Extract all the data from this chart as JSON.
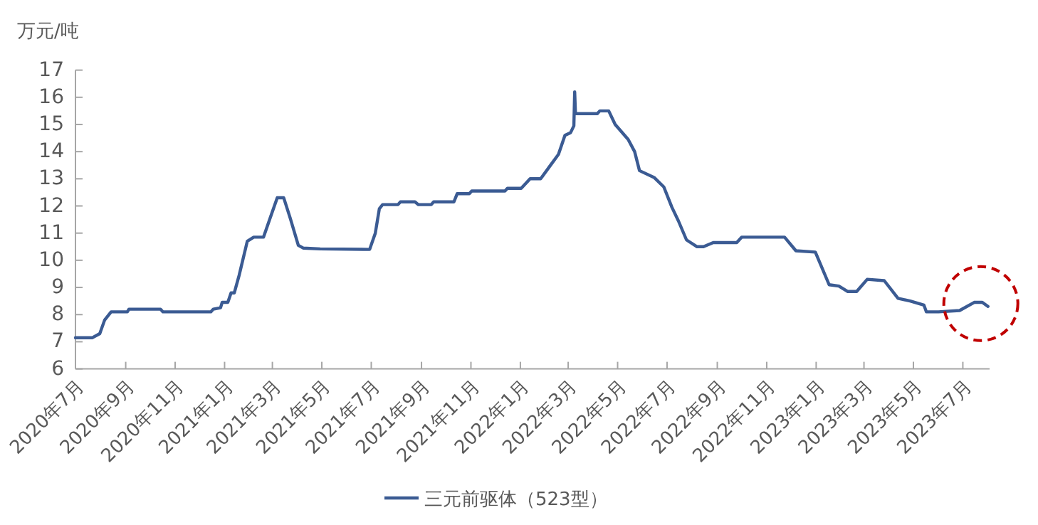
{
  "chart_data": {
    "type": "line",
    "ylabel": "万元/吨",
    "legend": "bottom",
    "grid": false,
    "marker": "none",
    "line_style": "solid",
    "ylim": [
      6,
      17
    ],
    "yticks": [
      6,
      7,
      8,
      9,
      10,
      11,
      12,
      13,
      14,
      15,
      16,
      17
    ],
    "xlim": [
      "2020-07-01",
      "2023-08-03"
    ],
    "xticks": [
      {
        "value": "2020-07-01",
        "label": "2020年7月"
      },
      {
        "value": "2020-09-01",
        "label": "2020年9月"
      },
      {
        "value": "2020-11-01",
        "label": "2020年11月"
      },
      {
        "value": "2021-01-01",
        "label": "2021年1月"
      },
      {
        "value": "2021-03-01",
        "label": "2021年3月"
      },
      {
        "value": "2021-05-01",
        "label": "2021年5月"
      },
      {
        "value": "2021-07-01",
        "label": "2021年7月"
      },
      {
        "value": "2021-09-01",
        "label": "2021年9月"
      },
      {
        "value": "2021-11-01",
        "label": "2021年11月"
      },
      {
        "value": "2022-01-01",
        "label": "2022年1月"
      },
      {
        "value": "2022-03-01",
        "label": "2022年3月"
      },
      {
        "value": "2022-05-01",
        "label": "2022年5月"
      },
      {
        "value": "2022-07-01",
        "label": "2022年7月"
      },
      {
        "value": "2022-09-01",
        "label": "2022年9月"
      },
      {
        "value": "2022-11-01",
        "label": "2022年11月"
      },
      {
        "value": "2023-01-01",
        "label": "2023年1月"
      },
      {
        "value": "2023-03-01",
        "label": "2023年3月"
      },
      {
        "value": "2023-05-01",
        "label": "2023年5月"
      },
      {
        "value": "2023-07-01",
        "label": "2023年7月"
      }
    ],
    "x": [
      "2020-07-01",
      "2020-07-22",
      "2020-07-31",
      "2020-08-06",
      "2020-08-14",
      "2020-09-03",
      "2020-09-05",
      "2020-10-14",
      "2020-10-17",
      "2020-12-15",
      "2020-12-18",
      "2020-12-27",
      "2020-12-29",
      "2021-01-05",
      "2021-01-09",
      "2021-01-13",
      "2021-01-19",
      "2021-01-29",
      "2021-02-06",
      "2021-02-18",
      "2021-02-25",
      "2021-03-07",
      "2021-03-15",
      "2021-03-23",
      "2021-04-02",
      "2021-04-08",
      "2021-04-29",
      "2021-06-29",
      "2021-07-06",
      "2021-07-11",
      "2021-07-15",
      "2021-08-03",
      "2021-08-06",
      "2021-08-24",
      "2021-08-28",
      "2021-09-13",
      "2021-09-16",
      "2021-10-11",
      "2021-10-15",
      "2021-10-30",
      "2021-11-02",
      "2021-12-13",
      "2021-12-16",
      "2022-01-02",
      "2022-01-13",
      "2022-01-26",
      "2022-02-06",
      "2022-02-17",
      "2022-02-25",
      "2022-03-04",
      "2022-03-08",
      "2022-03-09",
      "2022-03-10",
      "2022-04-06",
      "2022-04-09",
      "2022-04-20",
      "2022-04-28",
      "2022-05-14",
      "2022-05-22",
      "2022-05-28",
      "2022-06-15",
      "2022-06-27",
      "2022-07-07",
      "2022-07-15",
      "2022-07-25",
      "2022-08-07",
      "2022-08-15",
      "2022-08-27",
      "2022-09-25",
      "2022-10-01",
      "2022-11-23",
      "2022-12-07",
      "2022-12-31",
      "2023-01-17",
      "2023-01-29",
      "2023-02-09",
      "2023-02-20",
      "2023-03-05",
      "2023-03-26",
      "2023-04-12",
      "2023-04-27",
      "2023-05-14",
      "2023-05-17",
      "2023-06-01",
      "2023-06-27",
      "2023-07-15",
      "2023-07-25",
      "2023-08-01"
    ],
    "series": [
      {
        "name": "三元前驱体（523型）",
        "color": "#3b5b93",
        "values": [
          7.15,
          7.15,
          7.3,
          7.8,
          8.1,
          8.1,
          8.2,
          8.2,
          8.1,
          8.1,
          8.2,
          8.25,
          8.45,
          8.45,
          8.8,
          8.8,
          9.45,
          10.7,
          10.85,
          10.85,
          11.45,
          12.3,
          12.3,
          11.55,
          10.55,
          10.45,
          10.42,
          10.4,
          11.0,
          11.9,
          12.05,
          12.05,
          12.15,
          12.15,
          12.05,
          12.05,
          12.15,
          12.15,
          12.45,
          12.45,
          12.55,
          12.55,
          12.65,
          12.65,
          13.0,
          13.0,
          13.45,
          13.9,
          14.6,
          14.7,
          14.95,
          16.2,
          15.4,
          15.4,
          15.5,
          15.5,
          15.0,
          14.45,
          14.0,
          13.3,
          13.05,
          12.7,
          11.95,
          11.45,
          10.75,
          10.5,
          10.5,
          10.65,
          10.65,
          10.85,
          10.85,
          10.35,
          10.3,
          9.1,
          9.05,
          8.85,
          8.85,
          9.3,
          9.25,
          8.6,
          8.5,
          8.35,
          8.1,
          8.1,
          8.15,
          8.45,
          8.45,
          8.3
        ]
      }
    ]
  }
}
